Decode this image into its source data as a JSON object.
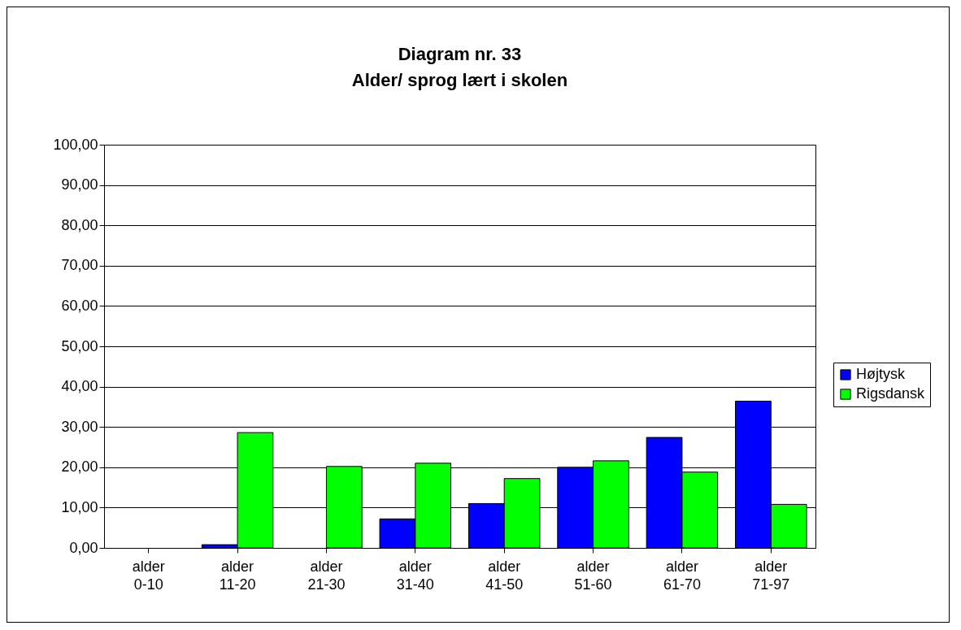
{
  "chart_data": {
    "type": "bar",
    "title": [
      "Diagram nr. 33",
      "Alder/ sprog lært i skolen"
    ],
    "categories": [
      "alder 0-10",
      "alder 11-20",
      "alder 21-30",
      "alder 31-40",
      "alder 41-50",
      "alder 51-60",
      "alder 61-70",
      "alder 71-97"
    ],
    "series": [
      {
        "name": "Højtysk",
        "color": "#0000ff",
        "values": [
          null,
          0.8,
          null,
          7.2,
          11,
          20,
          27.4,
          36.4
        ]
      },
      {
        "name": "Rigsdansk",
        "color": "#00ff00",
        "values": [
          null,
          28.6,
          20.2,
          21,
          17.2,
          21.6,
          18.8,
          10.8
        ]
      }
    ],
    "ylim": [
      0,
      100
    ],
    "yticks": [
      {
        "value": 0,
        "label": "0,00"
      },
      {
        "value": 10,
        "label": "10,00"
      },
      {
        "value": 20,
        "label": "20,00"
      },
      {
        "value": 30,
        "label": "30,00"
      },
      {
        "value": 40,
        "label": "40,00"
      },
      {
        "value": 50,
        "label": "50,00"
      },
      {
        "value": 60,
        "label": "60,00"
      },
      {
        "value": 70,
        "label": "70,00"
      },
      {
        "value": 80,
        "label": "80,00"
      },
      {
        "value": 90,
        "label": "90,00"
      },
      {
        "value": 100,
        "label": "100,00"
      }
    ],
    "grid": "y",
    "legend": "right"
  }
}
